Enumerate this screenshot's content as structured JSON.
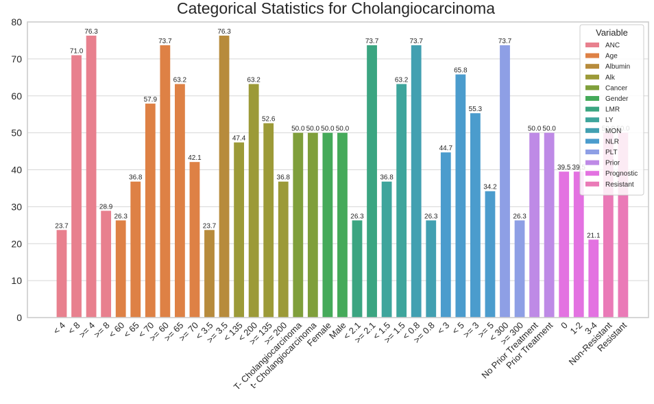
{
  "chart_data": {
    "type": "bar",
    "title": "Categorical Statistics for Cholangiocarcinoma",
    "xlabel": "",
    "ylabel": "",
    "ylim": [
      0,
      80
    ],
    "yticks": [
      0,
      10,
      20,
      30,
      40,
      50,
      60,
      70,
      80
    ],
    "grid": true,
    "legend": {
      "title": "Variable",
      "placement": "top-right",
      "entries": [
        {
          "name": "ANC",
          "color": "#e8808e"
        },
        {
          "name": "Age",
          "color": "#de8145"
        },
        {
          "name": "Albumin",
          "color": "#b78b3c"
        },
        {
          "name": "Alk",
          "color": "#9c9a38"
        },
        {
          "name": "Cancer",
          "color": "#7f9f3b"
        },
        {
          "name": "Gender",
          "color": "#45aa5a"
        },
        {
          "name": "LMR",
          "color": "#3ba581"
        },
        {
          "name": "LY",
          "color": "#3ea59c"
        },
        {
          "name": "MON",
          "color": "#42a0b1"
        },
        {
          "name": "NLR",
          "color": "#4b9ccd"
        },
        {
          "name": "PLT",
          "color": "#8e9fe5"
        },
        {
          "name": "Prior",
          "color": "#be8ae6"
        },
        {
          "name": "Prognostic",
          "color": "#e372e1"
        },
        {
          "name": "Resistant",
          "color": "#ea7ab7"
        }
      ]
    },
    "bars": [
      {
        "label": "< 4",
        "value": 23.7,
        "variable": "ANC",
        "value_label": "23.7"
      },
      {
        "label": "< 8",
        "value": 71.0,
        "variable": "ANC",
        "value_label": "71.0"
      },
      {
        "label": ">= 4",
        "value": 76.3,
        "variable": "ANC",
        "value_label": "76.3"
      },
      {
        "label": ">= 8",
        "value": 28.9,
        "variable": "ANC",
        "value_label": "28.9"
      },
      {
        "label": "< 60",
        "value": 26.3,
        "variable": "Age",
        "value_label": "26.3"
      },
      {
        "label": "< 65",
        "value": 36.8,
        "variable": "Age",
        "value_label": "36.8"
      },
      {
        "label": "< 70",
        "value": 57.9,
        "variable": "Age",
        "value_label": "57.9"
      },
      {
        "label": ">= 60",
        "value": 73.7,
        "variable": "Age",
        "value_label": "73.7"
      },
      {
        "label": ">= 65",
        "value": 63.2,
        "variable": "Age",
        "value_label": "63.2"
      },
      {
        "label": ">= 70",
        "value": 42.1,
        "variable": "Age",
        "value_label": "42.1"
      },
      {
        "label": "< 3.5",
        "value": 23.7,
        "variable": "Albumin",
        "value_label": "23.7"
      },
      {
        "label": ">= 3.5",
        "value": 76.3,
        "variable": "Albumin",
        "value_label": "76.3"
      },
      {
        "label": "< 135",
        "value": 47.4,
        "variable": "Alk",
        "value_label": "47.4"
      },
      {
        "label": "< 200",
        "value": 63.2,
        "variable": "Alk",
        "value_label": "63.2"
      },
      {
        "label": ">= 135",
        "value": 52.6,
        "variable": "Alk",
        "value_label": "52.6"
      },
      {
        "label": ">= 200",
        "value": 36.8,
        "variable": "Alk",
        "value_label": "36.8"
      },
      {
        "label": "T- Cholangiocarcinoma",
        "value": 50.0,
        "variable": "Cancer",
        "value_label": "50.0"
      },
      {
        "label": "t- Cholangiocarcinoma",
        "value": 50.0,
        "variable": "Cancer",
        "value_label": "50.0"
      },
      {
        "label": "Female",
        "value": 50.0,
        "variable": "Gender",
        "value_label": "50.0"
      },
      {
        "label": "Male",
        "value": 50.0,
        "variable": "Gender",
        "value_label": "50.0"
      },
      {
        "label": "< 2.1",
        "value": 26.3,
        "variable": "LMR",
        "value_label": "26.3"
      },
      {
        "label": ">= 2.1",
        "value": 73.7,
        "variable": "LMR",
        "value_label": "73.7"
      },
      {
        "label": "< 1.5",
        "value": 36.8,
        "variable": "LY",
        "value_label": "36.8"
      },
      {
        "label": ">= 1.5",
        "value": 63.2,
        "variable": "LY",
        "value_label": "63.2"
      },
      {
        "label": "< 0.8",
        "value": 73.7,
        "variable": "MON",
        "value_label": "73.7"
      },
      {
        "label": ">= 0.8",
        "value": 26.3,
        "variable": "MON",
        "value_label": "26.3"
      },
      {
        "label": "< 3",
        "value": 44.7,
        "variable": "NLR",
        "value_label": "44.7"
      },
      {
        "label": "< 5",
        "value": 65.8,
        "variable": "NLR",
        "value_label": "65.8"
      },
      {
        "label": ">= 3",
        "value": 55.3,
        "variable": "NLR",
        "value_label": "55.3"
      },
      {
        "label": ">= 5",
        "value": 34.2,
        "variable": "NLR",
        "value_label": "34.2"
      },
      {
        "label": "< 300",
        "value": 73.7,
        "variable": "PLT",
        "value_label": "73.7"
      },
      {
        "label": ">= 300",
        "value": 26.3,
        "variable": "PLT",
        "value_label": "26.3"
      },
      {
        "label": "No Prior Treatment",
        "value": 50.0,
        "variable": "Prior",
        "value_label": "50.0"
      },
      {
        "label": "Prior Treatment",
        "value": 50.0,
        "variable": "Prior",
        "value_label": "50.0"
      },
      {
        "label": "0",
        "value": 39.5,
        "variable": "Prognostic",
        "value_label": "39.5"
      },
      {
        "label": "1-2",
        "value": 39.5,
        "variable": "Prognostic",
        "value_label": "39.5"
      },
      {
        "label": "3-4",
        "value": 21.1,
        "variable": "Prognostic",
        "value_label": "21.1"
      },
      {
        "label": "Non-Resistant",
        "value": 50.0,
        "variable": "Resistant",
        "value_label": "50.0"
      },
      {
        "label": "Resistant",
        "value": 50.0,
        "variable": "Resistant",
        "value_label": "50.0"
      }
    ]
  }
}
